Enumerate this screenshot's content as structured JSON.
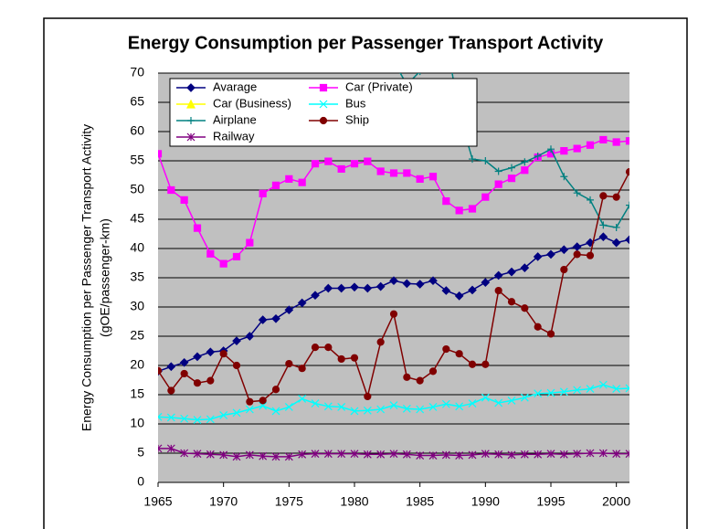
{
  "chart_data": {
    "type": "line",
    "title": "Energy Consumption per Passenger Transport Activity",
    "y_label": "Energy Consumption per Passenger Transport Activity",
    "y_label_unit": "(gOE/passenger-km)",
    "x": [
      1965,
      1966,
      1967,
      1968,
      1969,
      1970,
      1971,
      1972,
      1973,
      1974,
      1975,
      1976,
      1977,
      1978,
      1979,
      1980,
      1981,
      1982,
      1983,
      1984,
      1985,
      1986,
      1987,
      1988,
      1989,
      1990,
      1991,
      1992,
      1993,
      1994,
      1995,
      1996,
      1997,
      1998,
      1999,
      2000,
      2001
    ],
    "xlim": [
      1965,
      2001
    ],
    "xticks": [
      1965,
      1970,
      1975,
      1980,
      1985,
      1990,
      1995,
      2000
    ],
    "ylim": [
      0,
      70
    ],
    "yticks": [
      0,
      5,
      10,
      15,
      20,
      25,
      30,
      35,
      40,
      45,
      50,
      55,
      60,
      65,
      70
    ],
    "grid": true,
    "legend": "top-left",
    "series": [
      {
        "name": "Avarage",
        "color": "#000080",
        "marker": "diamond",
        "values": [
          19,
          19.8,
          20.5,
          21.5,
          22.3,
          22.5,
          24.2,
          25,
          27.8,
          28,
          29.5,
          30.7,
          32,
          33.2,
          33.2,
          33.4,
          33.2,
          33.5,
          34.5,
          34,
          33.9,
          34.5,
          32.8,
          31.9,
          32.9,
          34.2,
          35.4,
          36,
          36.7,
          38.6,
          39,
          39.8,
          40.3,
          41,
          42,
          41,
          41.5
        ]
      },
      {
        "name": "Car (Private)",
        "color": "#ff00ff",
        "marker": "square",
        "values": [
          56.2,
          50,
          48.3,
          43.5,
          39.1,
          37.4,
          38.6,
          41,
          49.4,
          50.8,
          51.9,
          51.3,
          54.5,
          54.9,
          53.6,
          54.5,
          54.9,
          53.2,
          52.9,
          52.9,
          51.9,
          52.3,
          48.1,
          46.5,
          46.8,
          48.8,
          51,
          52,
          53.4,
          55.6,
          56.2,
          56.7,
          57.1,
          57.7,
          58.6,
          58.2,
          58.4
        ]
      },
      {
        "name": "Car (Business)",
        "color": "#ffff00",
        "marker": "triangle",
        "values": [
          null,
          null,
          null,
          null,
          null,
          null,
          null,
          null,
          null,
          null,
          null,
          null,
          null,
          null,
          null,
          null,
          null,
          null,
          null,
          null,
          null,
          null,
          null,
          null,
          null,
          null,
          null,
          null,
          null,
          null,
          null,
          null,
          null,
          null,
          null,
          null,
          null
        ]
      },
      {
        "name": "Bus",
        "color": "#00ffff",
        "marker": "x",
        "values": [
          11.2,
          11.1,
          10.9,
          10.7,
          10.8,
          11.5,
          11.9,
          12.5,
          13.1,
          12.2,
          12.9,
          14.3,
          13.5,
          13,
          12.9,
          12.2,
          12.3,
          12.5,
          13.2,
          12.6,
          12.5,
          12.9,
          13.4,
          13,
          13.5,
          14.5,
          13.6,
          14,
          14.5,
          15.2,
          15.3,
          15.5,
          15.8,
          16,
          16.7,
          16,
          16.1
        ]
      },
      {
        "name": "Airplane",
        "color": "#008080",
        "marker": "plus",
        "values": [
          null,
          null,
          null,
          null,
          null,
          null,
          null,
          null,
          null,
          null,
          null,
          null,
          null,
          null,
          null,
          null,
          null,
          null,
          72,
          68,
          70.3,
          73,
          76,
          63,
          55.3,
          55,
          53.2,
          53.8,
          54.8,
          55.8,
          57,
          52.3,
          49.5,
          48.3,
          44,
          43.6,
          47.4
        ]
      },
      {
        "name": "Ship",
        "color": "#800000",
        "marker": "circle",
        "values": [
          19.1,
          15.7,
          18.6,
          17,
          17.4,
          22,
          20,
          13.8,
          14,
          15.9,
          20.3,
          19.5,
          23.1,
          23.1,
          21.1,
          21.3,
          14.7,
          24,
          28.8,
          18,
          17.4,
          19,
          22.8,
          22,
          20.2,
          20.2,
          32.8,
          30.9,
          29.8,
          26.6,
          25.4,
          36.4,
          39,
          38.8,
          49,
          48.8,
          53.1
        ]
      },
      {
        "name": "Railway",
        "color": "#800080",
        "marker": "star",
        "values": [
          5.8,
          5.8,
          5,
          4.9,
          4.8,
          4.7,
          4.4,
          4.7,
          4.5,
          4.4,
          4.4,
          4.8,
          4.9,
          4.9,
          4.9,
          4.9,
          4.8,
          4.8,
          4.9,
          4.8,
          4.6,
          4.6,
          4.7,
          4.6,
          4.7,
          4.9,
          4.8,
          4.7,
          4.8,
          4.8,
          4.9,
          4.8,
          4.9,
          5,
          5,
          4.9,
          4.9
        ]
      }
    ]
  }
}
